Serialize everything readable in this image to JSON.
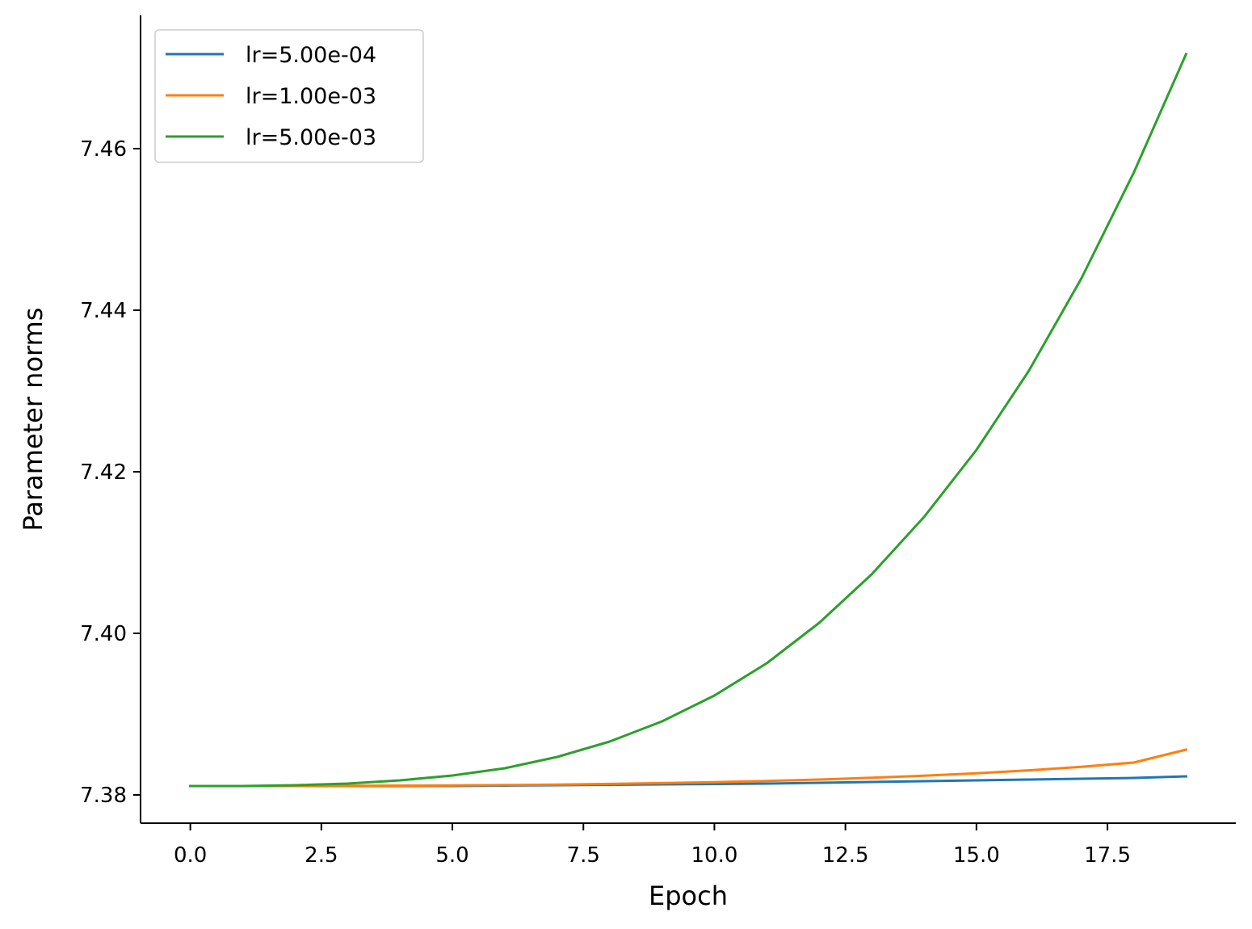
{
  "chart_data": {
    "type": "line",
    "title": "",
    "xlabel": "Epoch",
    "ylabel": "Parameter norms",
    "xlim": [
      -0.95,
      19.95
    ],
    "ylim": [
      7.3765,
      7.4765
    ],
    "x_ticks": [
      0.0,
      2.5,
      5.0,
      7.5,
      10.0,
      12.5,
      15.0,
      17.5
    ],
    "x_tick_labels": [
      "0.0",
      "2.5",
      "5.0",
      "7.5",
      "10.0",
      "12.5",
      "15.0",
      "17.5"
    ],
    "y_ticks": [
      7.38,
      7.4,
      7.42,
      7.44,
      7.46
    ],
    "y_tick_labels": [
      "7.38",
      "7.40",
      "7.42",
      "7.44",
      "7.46"
    ],
    "grid": false,
    "legend_position": "top-left",
    "x": [
      0,
      1,
      2,
      3,
      4,
      5,
      6,
      7,
      8,
      9,
      10,
      11,
      12,
      13,
      14,
      15,
      16,
      17,
      18,
      19
    ],
    "series": [
      {
        "name": "lr=5.00e-04",
        "color": "#1f77b4",
        "values": [
          7.3811,
          7.3811,
          7.3811,
          7.3811,
          7.3811,
          7.3811,
          7.38115,
          7.3812,
          7.38125,
          7.3813,
          7.38135,
          7.3814,
          7.3815,
          7.3816,
          7.3817,
          7.3818,
          7.3819,
          7.382,
          7.3821,
          7.3823
        ]
      },
      {
        "name": "lr=1.00e-03",
        "color": "#ff7f0e",
        "values": [
          7.3811,
          7.3811,
          7.3811,
          7.38112,
          7.38115,
          7.38118,
          7.38122,
          7.38128,
          7.38136,
          7.38146,
          7.38158,
          7.38173,
          7.3819,
          7.38212,
          7.38238,
          7.38268,
          7.38304,
          7.38348,
          7.384,
          7.3856
        ]
      },
      {
        "name": "lr=5.00e-03",
        "color": "#2ca02c",
        "values": [
          7.3811,
          7.3811,
          7.3812,
          7.3814,
          7.3818,
          7.3824,
          7.3833,
          7.3847,
          7.3866,
          7.3891,
          7.3923,
          7.3963,
          7.4013,
          7.4073,
          7.4144,
          7.4227,
          7.4325,
          7.4439,
          7.457,
          7.4717
        ]
      }
    ]
  }
}
